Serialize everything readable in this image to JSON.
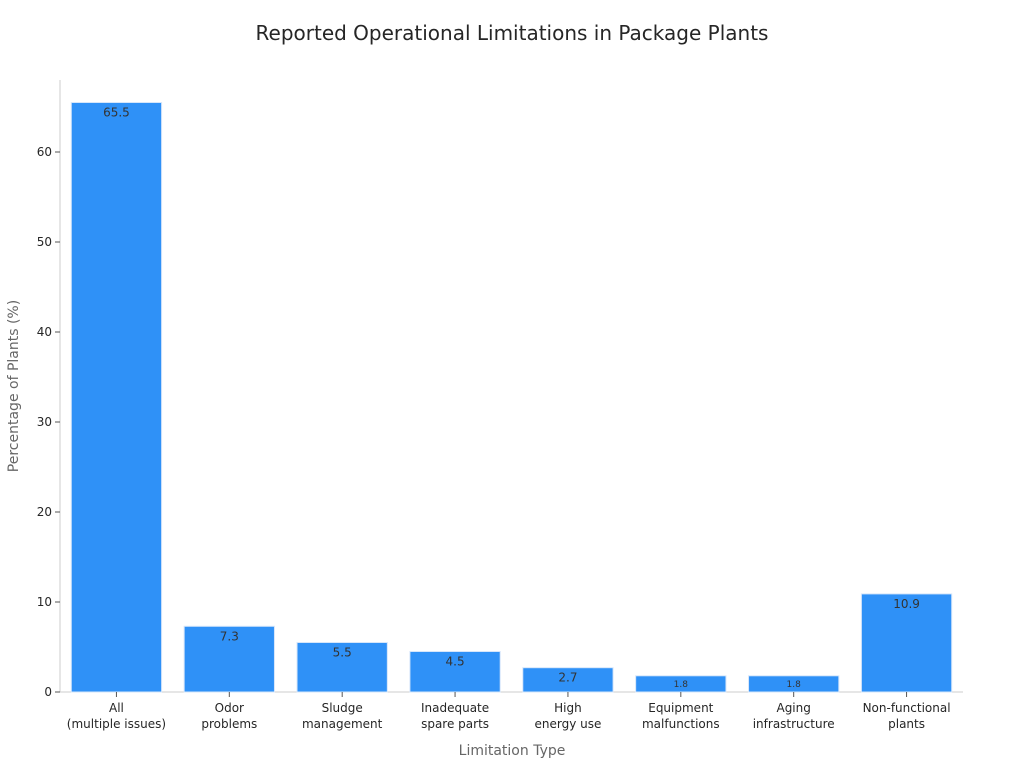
{
  "chart_data": {
    "type": "bar",
    "title": "Reported Operational Limitations in Package Plants",
    "xlabel": "Limitation Type",
    "ylabel": "Percentage of Plants (%)",
    "ylim": [
      0,
      68
    ],
    "yticks": [
      0,
      10,
      20,
      30,
      40,
      50,
      60
    ],
    "grid": false,
    "categories": [
      [
        "All",
        "(multiple issues)"
      ],
      [
        "Odor",
        "problems"
      ],
      [
        "Sludge",
        "management"
      ],
      [
        "Inadequate",
        "spare parts"
      ],
      [
        "High",
        "energy use"
      ],
      [
        "Equipment",
        "malfunctions"
      ],
      [
        "Aging",
        "infrastructure"
      ],
      [
        "Non-functional",
        "plants"
      ]
    ],
    "values": [
      65.5,
      7.3,
      5.5,
      4.5,
      2.7,
      1.8,
      1.8,
      10.9
    ],
    "data_labels": [
      "65.5",
      "7.3",
      "5.5",
      "4.5",
      "2.7",
      "1.8",
      "1.8",
      "10.9"
    ],
    "bar_color": "#2f91f7"
  }
}
